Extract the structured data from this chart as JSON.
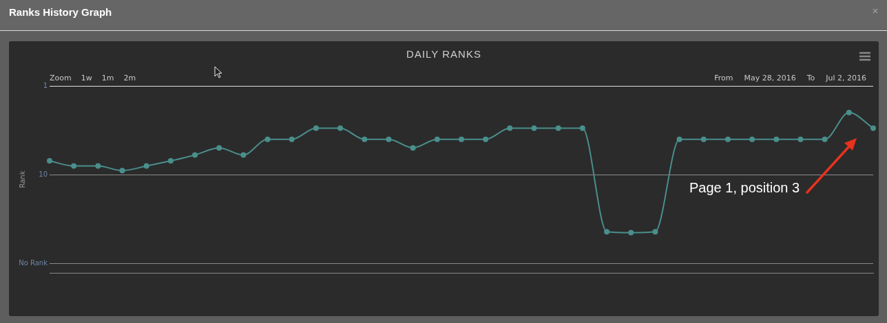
{
  "chart_data": {
    "type": "line",
    "title": "Ranks History Graph",
    "subtitle": "DAILY RANKS",
    "ylabel": "Rank",
    "categories": [
      null,
      null,
      null,
      null,
      null,
      null,
      null,
      null,
      null,
      null,
      null,
      null,
      null,
      null,
      null,
      null,
      null,
      null,
      null,
      null,
      null,
      null,
      null,
      null,
      null,
      null,
      null,
      null,
      null,
      null,
      null,
      null,
      null,
      null,
      null
    ],
    "series": [
      {
        "color": "#4a8f8c",
        "values": [
          7,
          8,
          8,
          9,
          8,
          7,
          6,
          5,
          6,
          4,
          4,
          3,
          3,
          4,
          4,
          5,
          4,
          4,
          4,
          3,
          3,
          3,
          3,
          44,
          45,
          44,
          4,
          4,
          4,
          4,
          4,
          4,
          4,
          2,
          3
        ]
      }
    ],
    "log": true,
    "ylim": [
      128,
      1
    ],
    "yticks": [
      1,
      10,
      {
        "value": 100,
        "label": "No Rank"
      }
    ],
    "grid": "y",
    "marker": "circle",
    "line_style": "solid",
    "legend": false,
    "tick_labels": "y",
    "annotations": [
      "Zoom",
      "1w",
      "1m",
      "2m",
      "From",
      "May 28, 2016",
      "To",
      "Jul 2, 2016",
      "Page 1, position 3"
    ]
  }
}
